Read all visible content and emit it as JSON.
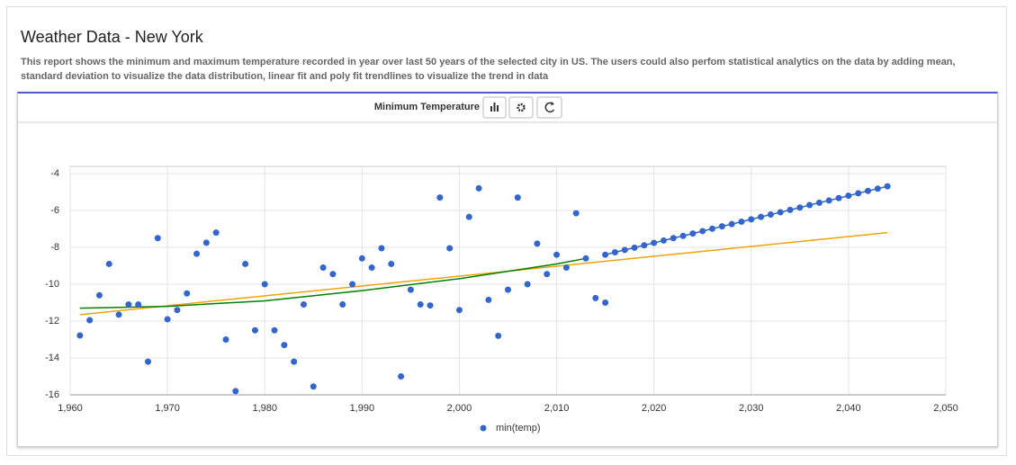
{
  "header": {
    "title": "Weather Data - New York",
    "description": "This report shows the minimum and maximum temperature recorded in year over last 50 years of the selected city in US. The users could also perfom statistical analytics on the data by adding mean, standard deviation to visualize the data distribution, linear fit and poly fit trendlines to visualize the trend in data"
  },
  "panel": {
    "title": "Minimum Temperature"
  },
  "chart_data": {
    "type": "scatter",
    "xlim": [
      1960,
      2050
    ],
    "xticks": [
      {
        "value": 1960,
        "label": "1,960"
      },
      {
        "value": 1970,
        "label": "1,970"
      },
      {
        "value": 1980,
        "label": "1,980"
      },
      {
        "value": 1990,
        "label": "1,990"
      },
      {
        "value": 2000,
        "label": "2,000"
      },
      {
        "value": 2010,
        "label": "2,010"
      },
      {
        "value": 2020,
        "label": "2,020"
      },
      {
        "value": 2030,
        "label": "2,030"
      },
      {
        "value": 2040,
        "label": "2,040"
      },
      {
        "value": 2050,
        "label": "2,050"
      }
    ],
    "ylim": [
      -16,
      -4
    ],
    "yticks": [
      -4,
      -6,
      -8,
      -10,
      -12,
      -14,
      -16
    ],
    "grid": true,
    "legend": "bottom",
    "series": [
      {
        "name": "min(temp)",
        "color": "#3366cc",
        "x": [
          1961,
          1962,
          1963,
          1964,
          1965,
          1966,
          1967,
          1968,
          1969,
          1970,
          1971,
          1972,
          1973,
          1974,
          1975,
          1976,
          1977,
          1978,
          1979,
          1980,
          1981,
          1982,
          1983,
          1984,
          1985,
          1986,
          1987,
          1988,
          1989,
          1990,
          1991,
          1992,
          1993,
          1994,
          1995,
          1996,
          1997,
          1998,
          1999,
          2000,
          2001,
          2002,
          2003,
          2004,
          2005,
          2006,
          2007,
          2008,
          2009,
          2010,
          2011,
          2012,
          2013,
          2014,
          2015
        ],
        "values": [
          -12.78,
          -11.95,
          -10.6,
          -8.9,
          -11.65,
          -11.1,
          -11.1,
          -14.2,
          -7.5,
          -11.9,
          -11.4,
          -10.5,
          -8.35,
          -7.75,
          -7.2,
          -13.0,
          -15.8,
          -8.9,
          -12.5,
          -10.0,
          -12.5,
          -13.3,
          -14.2,
          -11.1,
          -15.55,
          -9.1,
          -9.45,
          -11.1,
          -10.0,
          -8.6,
          -9.1,
          -8.05,
          -8.9,
          -15.0,
          -10.3,
          -11.1,
          -11.15,
          -5.3,
          -8.05,
          -11.4,
          -6.35,
          -4.8,
          -10.85,
          -12.8,
          -10.3,
          -5.3,
          -10.0,
          -7.8,
          -9.45,
          -8.4,
          -9.1,
          -6.15,
          -8.6,
          -10.75,
          -11.0
        ]
      }
    ],
    "forecast": {
      "color": "#3366cc",
      "x": [
        2015,
        2016,
        2017,
        2018,
        2019,
        2020,
        2021,
        2022,
        2023,
        2024,
        2025,
        2026,
        2027,
        2028,
        2029,
        2030,
        2031,
        2032,
        2033,
        2034,
        2035,
        2036,
        2037,
        2038,
        2039,
        2040,
        2041,
        2042,
        2043,
        2044
      ],
      "values": [
        -8.4,
        -8.27,
        -8.14,
        -8.02,
        -7.89,
        -7.76,
        -7.63,
        -7.5,
        -7.38,
        -7.25,
        -7.12,
        -6.99,
        -6.86,
        -6.74,
        -6.61,
        -6.48,
        -6.35,
        -6.22,
        -6.1,
        -5.97,
        -5.84,
        -5.71,
        -5.58,
        -5.46,
        -5.33,
        -5.2,
        -5.07,
        -4.94,
        -4.82,
        -4.69
      ]
    },
    "trendlines": [
      {
        "color": "#f0a30a",
        "x": [
          1961,
          2044
        ],
        "values": [
          -11.65,
          -7.2
        ]
      },
      {
        "color": "#008000",
        "x": [
          1961,
          1970,
          1980,
          1990,
          2000,
          2005,
          2010,
          2013
        ],
        "values": [
          -11.3,
          -11.2,
          -10.9,
          -10.35,
          -9.7,
          -9.3,
          -8.9,
          -8.6
        ]
      }
    ]
  }
}
